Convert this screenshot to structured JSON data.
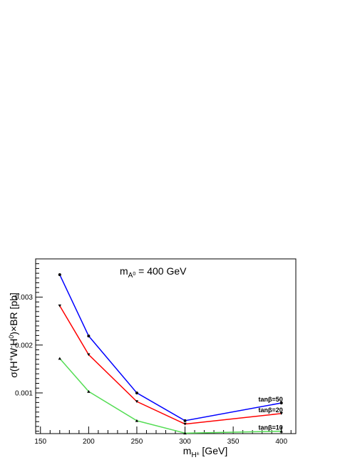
{
  "chart_data": {
    "type": "line",
    "title": "",
    "annotation": "m_A0 = 400 GeV",
    "annotation_parts": {
      "base": "m",
      "sub": "A",
      "sup": "0",
      "rest": " = 400 GeV"
    },
    "xlabel": "m_H± [GeV]",
    "xlabel_parts": {
      "base": "m",
      "sub": "H",
      "sup": "±",
      "rest": " [GeV]"
    },
    "ylabel": "σ(H±W∓H0)×BR [pb]",
    "ylabel_parts": {
      "a": "σ(H",
      "b": "+",
      "c": "W",
      "d": "-",
      "e": "H",
      "f": "0",
      "g": ")×BR [pb]"
    },
    "xlim": [
      145,
      415
    ],
    "ylim": [
      0.00015,
      0.0038
    ],
    "x_ticks": [
      150,
      200,
      250,
      300,
      350,
      400
    ],
    "x_tick_labels": [
      "150",
      "200",
      "250",
      "300",
      "350",
      "400"
    ],
    "y_ticks": [
      0.001,
      0.002,
      0.003
    ],
    "y_tick_labels": [
      "0.001",
      "0.002",
      "0.003"
    ],
    "x": [
      170,
      200,
      250,
      300,
      400
    ],
    "series": [
      {
        "name": "tanβ=50",
        "color": "#0000ff",
        "marker": "circle",
        "values": [
          0.00347,
          0.00219,
          0.001,
          0.00042,
          0.00079
        ]
      },
      {
        "name": "tanβ=20",
        "color": "#ff0000",
        "marker": "triangle-down",
        "values": [
          0.00282,
          0.0018,
          0.00082,
          0.00035,
          0.00057
        ]
      },
      {
        "name": "tanβ=10",
        "color": "#55dd55",
        "marker": "triangle-up",
        "values": [
          0.00172,
          0.00103,
          0.00042,
          0.00016,
          0.0002
        ]
      }
    ],
    "grid": false,
    "legend": "inline labels at right end of each series"
  }
}
